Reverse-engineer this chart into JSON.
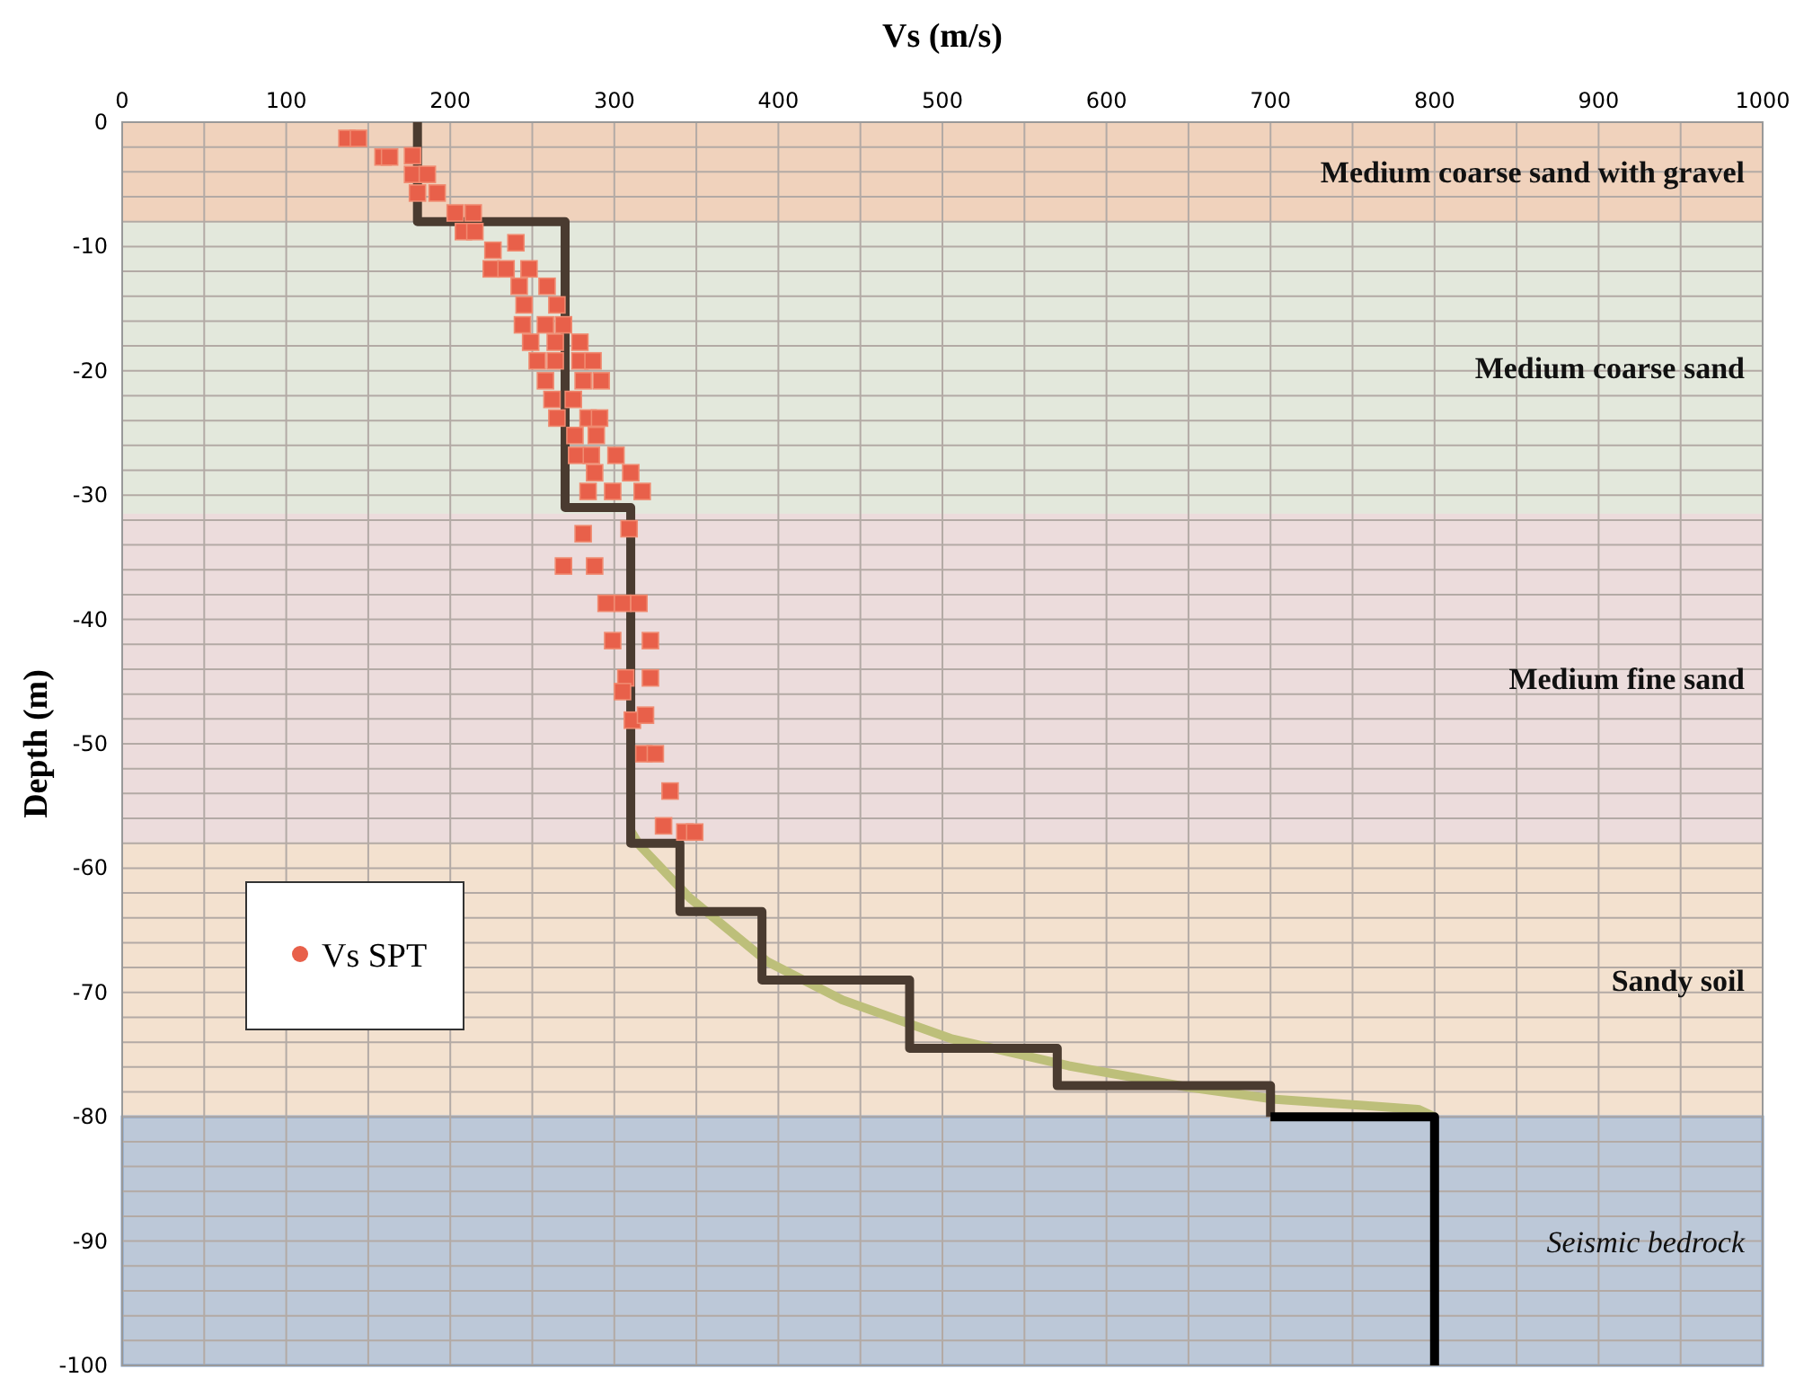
{
  "chart_data": {
    "type": "scatter",
    "xlabel": "Vs (m/s)",
    "ylabel": "Depth (m)",
    "xlim": [
      0,
      1000
    ],
    "ylim": [
      -100,
      0
    ],
    "xticks": [
      0,
      {
        "value": 50,
        "label": null
      },
      100,
      {
        "value": 150,
        "label": null
      },
      200,
      {
        "value": 250,
        "label": null
      },
      300,
      {
        "value": 350,
        "label": null
      },
      400,
      {
        "value": 450,
        "label": null
      },
      500,
      {
        "value": 550,
        "label": null
      },
      600,
      {
        "value": 650,
        "label": null
      },
      700,
      {
        "value": 750,
        "label": null
      },
      800,
      {
        "value": 850,
        "label": null
      },
      900,
      {
        "value": 950,
        "label": null
      },
      1000
    ],
    "yticks": [
      -100,
      {
        "value": -98,
        "label": null
      },
      {
        "value": -96,
        "label": null
      },
      {
        "value": -94,
        "label": null
      },
      {
        "value": -92,
        "label": null
      },
      -90,
      {
        "value": -88,
        "label": null
      },
      {
        "value": -86,
        "label": null
      },
      {
        "value": -84,
        "label": null
      },
      {
        "value": -82,
        "label": null
      },
      -80,
      {
        "value": -78,
        "label": null
      },
      {
        "value": -76,
        "label": null
      },
      {
        "value": -74,
        "label": null
      },
      {
        "value": -72,
        "label": null
      },
      -70,
      {
        "value": -68,
        "label": null
      },
      {
        "value": -66,
        "label": null
      },
      {
        "value": -64,
        "label": null
      },
      {
        "value": -62,
        "label": null
      },
      -60,
      {
        "value": -58,
        "label": null
      },
      {
        "value": -56,
        "label": null
      },
      {
        "value": -54,
        "label": null
      },
      {
        "value": -52,
        "label": null
      },
      -50,
      {
        "value": -48,
        "label": null
      },
      {
        "value": -46,
        "label": null
      },
      {
        "value": -44,
        "label": null
      },
      {
        "value": -42,
        "label": null
      },
      -40,
      {
        "value": -38,
        "label": null
      },
      {
        "value": -36,
        "label": null
      },
      {
        "value": -34,
        "label": null
      },
      {
        "value": -32,
        "label": null
      },
      -30,
      {
        "value": -28,
        "label": null
      },
      {
        "value": -26,
        "label": null
      },
      {
        "value": -24,
        "label": null
      },
      {
        "value": -22,
        "label": null
      },
      -20,
      {
        "value": -18,
        "label": null
      },
      {
        "value": -16,
        "label": null
      },
      {
        "value": -14,
        "label": null
      },
      {
        "value": -12,
        "label": null
      },
      -10,
      {
        "value": -8,
        "label": null
      },
      {
        "value": -6,
        "label": null
      },
      {
        "value": -4,
        "label": null
      },
      {
        "value": -2,
        "label": null
      },
      0
    ],
    "grid": true,
    "legend": "left",
    "bands": [
      {
        "axis": "y",
        "from": 0,
        "to": -8,
        "label": "Medium coarse sand with gravel",
        "color": "#f0d2bc"
      },
      {
        "axis": "y",
        "from": -8,
        "to": -31.5,
        "label": "Medium coarse sand",
        "color": "#e3e8dc"
      },
      {
        "axis": "y",
        "from": -31.5,
        "to": -58,
        "label": "Medium fine sand",
        "color": "#ecdcdc"
      },
      {
        "axis": "y",
        "from": -58,
        "to": -80,
        "label": "Sandy soil",
        "color": "#f3e1cf"
      },
      {
        "axis": "y",
        "from": -80,
        "to": -100,
        "label": "Seismic bedrock",
        "color": "#bcc8d8"
      }
    ],
    "series": [
      {
        "type": "line",
        "marker": "none",
        "color": "#bdbf7a",
        "x": [
          310,
          315,
          346,
          393,
          439,
          505,
          577,
          649,
          703,
          758,
          790,
          800
        ],
        "values": [
          -57,
          -58.1,
          -62.4,
          -67.5,
          -70.6,
          -73.7,
          -75.9,
          -77.6,
          -78.6,
          -79.1,
          -79.4,
          -80
        ]
      },
      {
        "type": "line",
        "marker": "none",
        "color": "#4a3b30",
        "x": [
          180,
          180,
          270,
          270,
          310,
          310,
          340,
          340,
          390,
          390,
          480,
          480,
          570,
          570,
          700,
          700
        ],
        "values": [
          0,
          -8,
          -8,
          -31,
          -31,
          -58,
          -58,
          -63.5,
          -63.5,
          -69,
          -69,
          -74.5,
          -74.5,
          -77.5,
          -77.5,
          -80
        ]
      },
      {
        "type": "line",
        "marker": "none",
        "color": "#000000",
        "x": [
          700,
          800,
          800
        ],
        "values": [
          -80,
          -80,
          -100
        ]
      },
      {
        "name": "Vs SPT",
        "marker": "square",
        "color": "#e8604a",
        "x": [
          137,
          144,
          159,
          163,
          177,
          177,
          186,
          180,
          192,
          203,
          214,
          208,
          215,
          226,
          240,
          225,
          234,
          248,
          242,
          259,
          245,
          265,
          244,
          258,
          269,
          249,
          264,
          279,
          253,
          264,
          279,
          287,
          258,
          281,
          292,
          262,
          275,
          265,
          284,
          291,
          276,
          289,
          277,
          286,
          301,
          288,
          310,
          284,
          299,
          317,
          281,
          309,
          269,
          288,
          295,
          305,
          315,
          299,
          322,
          307,
          322,
          305,
          311,
          319,
          318,
          325,
          334,
          330,
          343,
          349
        ],
        "values": [
          -1.3,
          -1.3,
          -2.8,
          -2.8,
          -2.7,
          -4.2,
          -4.2,
          -5.7,
          -5.7,
          -7.3,
          -7.3,
          -8.8,
          -8.8,
          -10.3,
          -9.7,
          -11.8,
          -11.8,
          -11.8,
          -13.2,
          -13.2,
          -14.7,
          -14.7,
          -16.3,
          -16.3,
          -16.3,
          -17.7,
          -17.7,
          -17.7,
          -19.2,
          -19.2,
          -19.2,
          -19.2,
          -20.8,
          -20.8,
          -20.8,
          -22.3,
          -22.3,
          -23.8,
          -23.8,
          -23.8,
          -25.2,
          -25.2,
          -26.8,
          -26.8,
          -26.8,
          -28.2,
          -28.2,
          -29.7,
          -29.7,
          -29.7,
          -33.1,
          -32.7,
          -35.7,
          -35.7,
          -38.7,
          -38.7,
          -38.7,
          -41.7,
          -41.7,
          -44.7,
          -44.7,
          -45.8,
          -48.1,
          -47.7,
          -50.8,
          -50.8,
          -53.8,
          -56.6,
          -57.1,
          -57.1
        ]
      }
    ]
  }
}
